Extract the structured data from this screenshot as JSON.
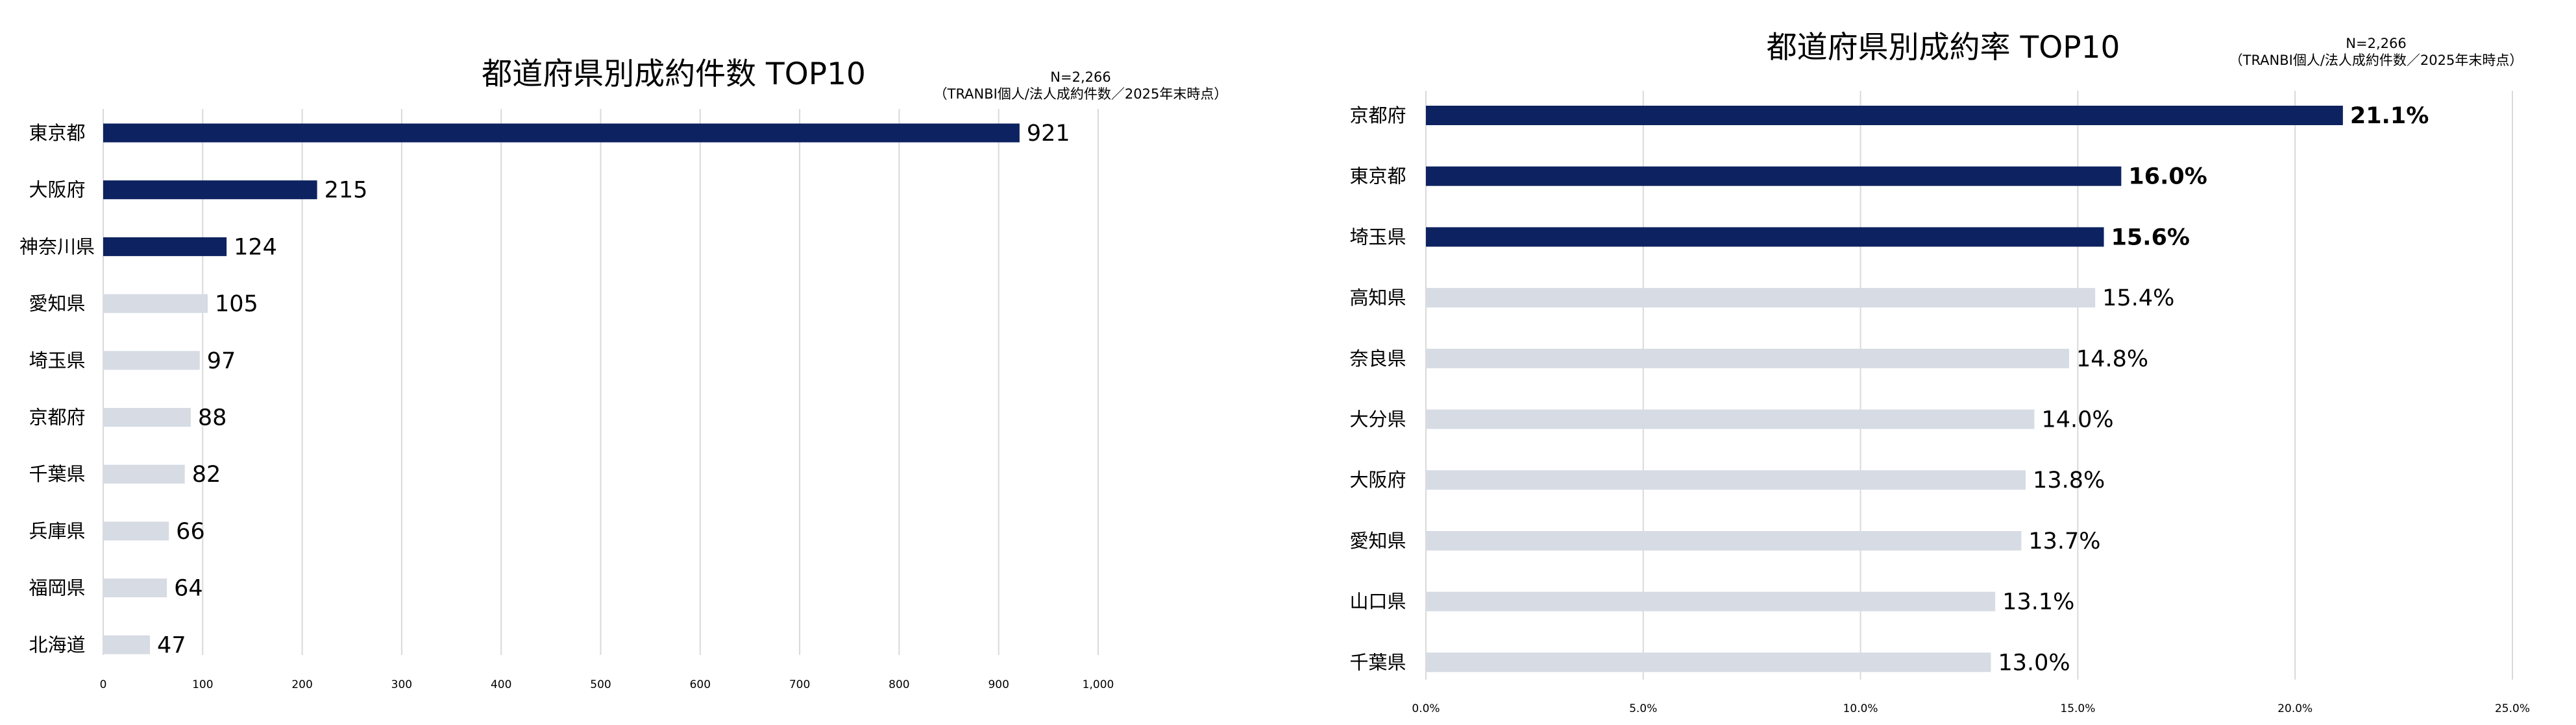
{
  "charts": [
    {
      "title": "都道府県別成約件数 TOP10",
      "note_line1": "N=2,266",
      "note_line2": "（TRANBI個人/法人成約件数／2025年末時点）"
    },
    {
      "title": "都道府県別成約率 TOP10",
      "note_line1": "N=2,266",
      "note_line2": "（TRANBI個人/法人成約件数／2025年末時点）"
    }
  ],
  "colors": {
    "highlight": "#0d2260",
    "muted": "#d6dbe4",
    "grid": "#d9d9d9"
  },
  "chart_data": [
    {
      "type": "bar",
      "orientation": "horizontal",
      "title": "都道府県別成約件数 TOP10",
      "categories": [
        "東京都",
        "大阪府",
        "神奈川県",
        "愛知県",
        "埼玉県",
        "京都府",
        "千葉県",
        "兵庫県",
        "福岡県",
        "北海道"
      ],
      "values": [
        921,
        215,
        124,
        105,
        97,
        88,
        82,
        66,
        64,
        47
      ],
      "value_labels": [
        "921",
        "215",
        "124",
        "105",
        "97",
        "88",
        "82",
        "66",
        "64",
        "47"
      ],
      "highlighted": [
        true,
        true,
        true,
        false,
        false,
        false,
        false,
        false,
        false,
        false
      ],
      "xlim": [
        0,
        1000
      ],
      "xticks": [
        0,
        100,
        200,
        300,
        400,
        500,
        600,
        700,
        800,
        900,
        1000
      ],
      "xtick_labels": [
        "0",
        "100",
        "200",
        "300",
        "400",
        "500",
        "600",
        "700",
        "800",
        "900",
        "1,000"
      ],
      "grid": true
    },
    {
      "type": "bar",
      "orientation": "horizontal",
      "title": "都道府県別成約率 TOP10",
      "categories": [
        "京都府",
        "東京都",
        "埼玉県",
        "高知県",
        "奈良県",
        "大分県",
        "大阪府",
        "愛知県",
        "山口県",
        "千葉県"
      ],
      "values": [
        21.1,
        16.0,
        15.6,
        15.4,
        14.8,
        14.0,
        13.8,
        13.7,
        13.1,
        13.0
      ],
      "value_labels": [
        "21.1%",
        "16.0%",
        "15.6%",
        "15.4%",
        "14.8%",
        "14.0%",
        "13.8%",
        "13.7%",
        "13.1%",
        "13.0%"
      ],
      "highlighted": [
        true,
        true,
        true,
        false,
        false,
        false,
        false,
        false,
        false,
        false
      ],
      "xlim": [
        0,
        25
      ],
      "xticks": [
        0,
        5,
        10,
        15,
        20,
        25
      ],
      "xtick_labels": [
        "0.0%",
        "5.0%",
        "10.0%",
        "15.0%",
        "20.0%",
        "25.0%"
      ],
      "grid": true
    }
  ]
}
